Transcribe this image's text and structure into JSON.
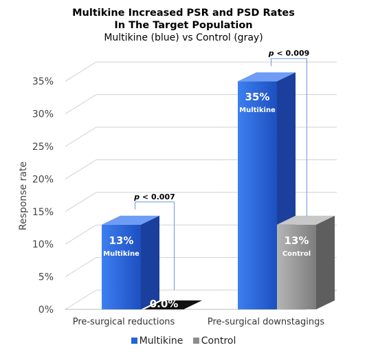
{
  "title": {
    "line1": "Multikine Increased PSR and PSD Rates",
    "line2": "In The Target Population",
    "subtitle": "Multikine (blue) vs Control (gray)"
  },
  "chart_data": {
    "type": "bar",
    "categories": [
      "Pre-surgical reductions",
      "Pre-surgical downstagings"
    ],
    "series": [
      {
        "name": "Multikine",
        "values": [
          13,
          35
        ],
        "color": "#2563d6",
        "labels": [
          "13%",
          "35%"
        ]
      },
      {
        "name": "Control",
        "values": [
          0,
          13
        ],
        "color": "#8c8c8c",
        "labels": [
          "0.0%",
          "13%"
        ]
      }
    ],
    "bar_sublabels": [
      [
        "Multikine",
        ""
      ],
      [
        "Multikine",
        "Control"
      ]
    ],
    "significance": [
      "p < 0.007",
      "p < 0.009"
    ],
    "ylabel": "Response rate",
    "ylim": [
      0,
      35
    ],
    "yticks": [
      "0%",
      "5%",
      "10%",
      "15%",
      "20%",
      "25%",
      "30%",
      "35%"
    ],
    "grid": true,
    "legend_position": "bottom"
  },
  "legend": {
    "items": [
      {
        "label": "Multikine",
        "color": "#2563d6"
      },
      {
        "label": "Control",
        "color": "#8c8c8c"
      }
    ]
  }
}
